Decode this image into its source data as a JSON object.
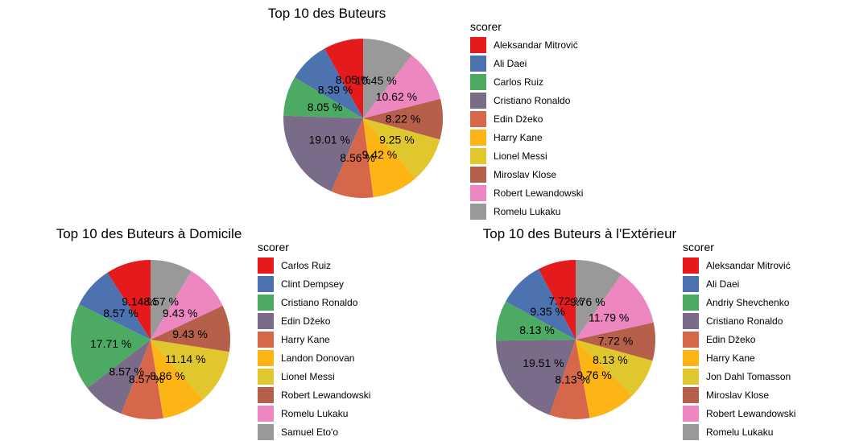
{
  "chart_data": [
    {
      "type": "pie",
      "title": "Top 10 des Buteurs",
      "legend_title": "scorer",
      "legend_position": "right",
      "grid": false,
      "categories": [
        "Aleksandar Mitrović",
        "Ali Daei",
        "Carlos Ruiz",
        "Cristiano Ronaldo",
        "Edin Džeko",
        "Harry Kane",
        "Lionel Messi",
        "Miroslav Klose",
        "Robert Lewandowski",
        "Romelu Lukaku"
      ],
      "values": [
        8.05,
        8.39,
        8.05,
        19.01,
        8.56,
        9.42,
        9.25,
        8.22,
        10.62,
        10.45
      ],
      "labels": [
        "8.05 %",
        "8.39 %",
        "8.05 %",
        "19.01 %",
        "8.56 %",
        "9.42 %",
        "9.25 %",
        "8.22 %",
        "10.62 %",
        "10.45 %"
      ],
      "colors": [
        "#e41a1c",
        "#4c72b0",
        "#4daa62",
        "#7a6c88",
        "#d6674b",
        "#fdb515",
        "#e0c72e",
        "#b65f4a",
        "#ec87c0",
        "#999999"
      ]
    },
    {
      "type": "pie",
      "title": "Top 10 des Buteurs à Domicile",
      "legend_title": "scorer",
      "legend_position": "right",
      "grid": false,
      "categories": [
        "Carlos Ruiz",
        "Clint Dempsey",
        "Cristiano Ronaldo",
        "Edin Džeko",
        "Harry Kane",
        "Landon Donovan",
        "Lionel Messi",
        "Robert Lewandowski",
        "Romelu Lukaku",
        "Samuel Eto'o"
      ],
      "values": [
        9.14,
        8.57,
        17.71,
        8.57,
        8.57,
        8.86,
        11.14,
        9.43,
        9.43,
        8.57
      ],
      "labels": [
        "9.14 %",
        "8.57 %",
        "17.71 %",
        "8.57 %",
        "8.57 %",
        "8.86 %",
        "11.14 %",
        "9.43 %",
        "9.43 %",
        "8.57 %"
      ],
      "colors": [
        "#e41a1c",
        "#4c72b0",
        "#4daa62",
        "#7a6c88",
        "#d6674b",
        "#fdb515",
        "#e0c72e",
        "#b65f4a",
        "#ec87c0",
        "#999999"
      ]
    },
    {
      "type": "pie",
      "title": "Top 10 des Buteurs à l'Extérieur",
      "legend_title": "scorer",
      "legend_position": "right",
      "grid": false,
      "categories": [
        "Aleksandar Mitrović",
        "Ali Daei",
        "Andriy Shevchenko",
        "Cristiano Ronaldo",
        "Edin Džeko",
        "Harry Kane",
        "Jon Dahl Tomasson",
        "Miroslav Klose",
        "Robert Lewandowski",
        "Romelu Lukaku"
      ],
      "values": [
        7.72,
        9.35,
        8.13,
        19.51,
        8.13,
        9.76,
        8.13,
        7.72,
        11.79,
        9.76
      ],
      "labels": [
        "7.72 %",
        "9.35 %",
        "8.13 %",
        "19.51 %",
        "8.13 %",
        "9.76 %",
        "8.13 %",
        "7.72 %",
        "11.79 %",
        "9.76 %"
      ],
      "colors": [
        "#e41a1c",
        "#4c72b0",
        "#4daa62",
        "#7a6c88",
        "#d6674b",
        "#fdb515",
        "#e0c72e",
        "#b65f4a",
        "#ec87c0",
        "#999999"
      ]
    }
  ]
}
